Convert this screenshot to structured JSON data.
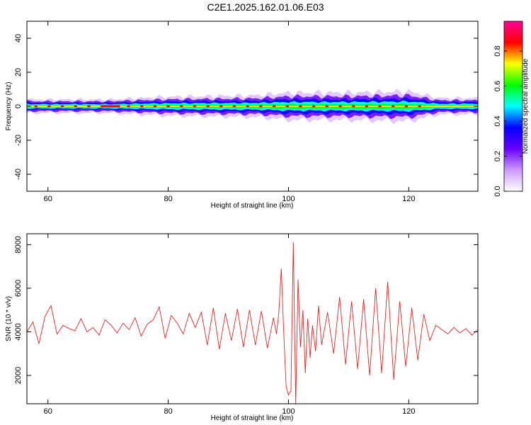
{
  "page": {
    "title": "C2E1.2025.162.01.06.E03"
  },
  "chart_data": [
    {
      "type": "heatmap",
      "title": "C2E1.2025.162.01.06.E03",
      "xlabel": "Height of straight line (km)",
      "ylabel": "Frequency (Hz)",
      "xlim": [
        56.5,
        131.5
      ],
      "ylim": [
        -50,
        50
      ],
      "x_ticks": [
        "60",
        "80",
        "100",
        "120"
      ],
      "y_ticks": [
        "40",
        "20",
        "0",
        "-20",
        "-40"
      ],
      "band_center_hz": 0,
      "band_halfwidth_hz": [
        {
          "x": 57,
          "hz": 2.5
        },
        {
          "x": 70,
          "hz": 2.5
        },
        {
          "x": 80,
          "hz": 3.5
        },
        {
          "x": 95,
          "hz": 4
        },
        {
          "x": 100,
          "hz": 5
        },
        {
          "x": 110,
          "hz": 5
        },
        {
          "x": 120,
          "hz": 5.5
        },
        {
          "x": 125,
          "hz": 3
        },
        {
          "x": 131,
          "hz": 3
        }
      ],
      "grid": false,
      "colorbar": {
        "label": "Normalized spectral amplitude",
        "range": [
          0,
          0.97
        ],
        "ticks": [
          "0.0",
          "0.2",
          "0.4",
          "0.6",
          "0.8"
        ],
        "colors": [
          "#ffffff",
          "#cc99ff",
          "#6600ff",
          "#0000ff",
          "#00ffff",
          "#00ff00",
          "#ffff00",
          "#ff0000",
          "#ff0099"
        ]
      }
    },
    {
      "type": "line",
      "xlabel": "Height of straight line (km)",
      "ylabel": "SNR (10 * v/v)",
      "xlim": [
        56.5,
        131.5
      ],
      "ylim": [
        700,
        8500
      ],
      "x_ticks": [
        "60",
        "80",
        "100",
        "120"
      ],
      "y_ticks": [
        "8000",
        "6000",
        "4000",
        "2000"
      ],
      "grid": false,
      "series": [
        {
          "color": "#ee2222",
          "x": [
            56.5,
            57.5,
            58.5,
            59.5,
            60.5,
            61.5,
            62.5,
            63.5,
            64.5,
            65.5,
            66.5,
            67.5,
            68.5,
            69.5,
            70.5,
            71.5,
            72.5,
            73.5,
            74.5,
            75.5,
            76.5,
            77.5,
            78.5,
            79.5,
            80.5,
            81.5,
            82.5,
            83.5,
            84.5,
            85.5,
            86.5,
            87.5,
            88.5,
            89.5,
            90.5,
            91.5,
            92.5,
            93.5,
            94.5,
            95.5,
            96.5,
            97.5,
            98.0,
            98.4,
            98.8,
            99.2,
            99.6,
            100.0,
            100.4,
            100.8,
            101.2,
            101.6,
            102.0,
            102.4,
            102.8,
            103.2,
            103.6,
            104.0,
            104.5,
            105.0,
            105.5,
            106.5,
            107.5,
            108.5,
            109.5,
            110.5,
            111.5,
            112.5,
            113.5,
            114.5,
            115.5,
            116.5,
            117.5,
            118.5,
            119.5,
            120.5,
            121.5,
            122.5,
            123.5,
            124.5,
            125.5,
            126.5,
            127.5,
            128.5,
            129.5,
            130.5,
            131.5
          ],
          "y": [
            4000,
            4450,
            3450,
            4700,
            5200,
            3900,
            4300,
            4150,
            4050,
            4600,
            4000,
            4200,
            3850,
            4550,
            4300,
            3950,
            4400,
            4100,
            4650,
            3800,
            4350,
            4550,
            5150,
            3700,
            4750,
            4400,
            3900,
            4850,
            4200,
            4900,
            3400,
            5100,
            3200,
            4850,
            3600,
            5050,
            3300,
            5000,
            3400,
            4950,
            3250,
            4650,
            3900,
            4900,
            6900,
            4000,
            1500,
            1100,
            1300,
            8100,
            700,
            6400,
            3300,
            5000,
            2100,
            4600,
            2800,
            4300,
            3100,
            5200,
            3400,
            4900,
            3000,
            5600,
            2500,
            5400,
            2300,
            5500,
            2000,
            6000,
            2100,
            6300,
            1800,
            5400,
            2400,
            5100,
            2700,
            4800,
            3600,
            4300,
            4100,
            3900,
            4200,
            3950,
            4150,
            3850,
            4100
          ]
        }
      ]
    }
  ]
}
